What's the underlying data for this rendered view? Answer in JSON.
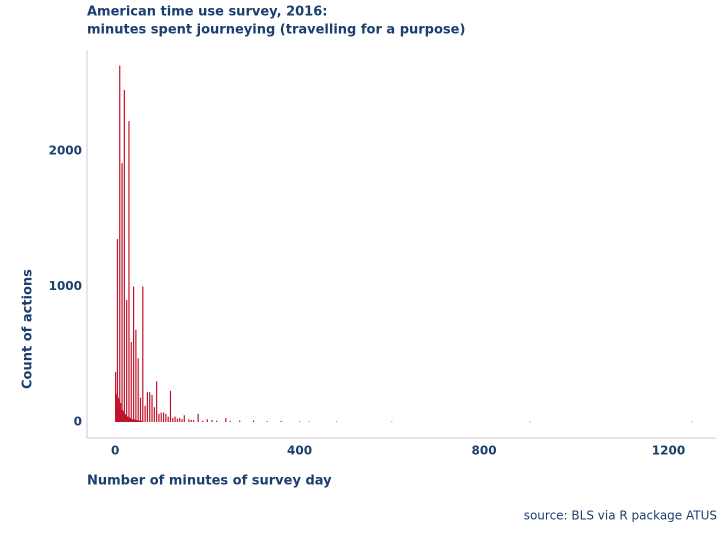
{
  "chart_data": {
    "type": "bar",
    "title": "American time use survey, 2016:",
    "subtitle": "minutes spent journeying (travelling for a purpose)",
    "xlabel": "Number of minutes of survey day",
    "ylabel": "Count of actions",
    "caption": "source: BLS via R package ATUS",
    "color": "#c0142b",
    "x": [
      1,
      2,
      3,
      4,
      5,
      6,
      7,
      8,
      9,
      10,
      11,
      12,
      13,
      14,
      15,
      16,
      17,
      18,
      19,
      20,
      21,
      22,
      23,
      24,
      25,
      26,
      27,
      28,
      29,
      30,
      31,
      32,
      33,
      34,
      35,
      36,
      37,
      38,
      39,
      40,
      41,
      42,
      43,
      44,
      45,
      46,
      47,
      48,
      49,
      50,
      51,
      52,
      53,
      54,
      55,
      56,
      57,
      58,
      59,
      60,
      65,
      70,
      75,
      80,
      85,
      90,
      95,
      100,
      105,
      110,
      115,
      120,
      125,
      130,
      135,
      140,
      145,
      150,
      160,
      165,
      170,
      180,
      190,
      200,
      210,
      220,
      240,
      250,
      270,
      300,
      330,
      360,
      400,
      420,
      480,
      600,
      900,
      1250
    ],
    "values": [
      370,
      210,
      200,
      190,
      1350,
      150,
      180,
      160,
      110,
      2630,
      80,
      140,
      90,
      70,
      1910,
      90,
      60,
      80,
      50,
      2450,
      50,
      60,
      40,
      50,
      900,
      40,
      40,
      40,
      30,
      2220,
      30,
      30,
      30,
      20,
      590,
      20,
      20,
      20,
      15,
      1000,
      15,
      20,
      15,
      10,
      680,
      10,
      10,
      15,
      10,
      470,
      10,
      10,
      10,
      8,
      180,
      8,
      8,
      8,
      5,
      1000,
      120,
      220,
      220,
      200,
      110,
      300,
      60,
      70,
      70,
      60,
      40,
      230,
      30,
      40,
      25,
      30,
      20,
      50,
      20,
      15,
      15,
      60,
      10,
      20,
      15,
      10,
      30,
      8,
      10,
      12,
      6,
      8,
      5,
      4,
      4,
      3,
      2,
      2
    ],
    "xlim": [
      -61,
      1303
    ],
    "xticks": [
      0,
      400,
      800,
      1200
    ],
    "ylim": [
      -118,
      2745
    ],
    "yticks": [
      0,
      1000,
      2000
    ]
  }
}
